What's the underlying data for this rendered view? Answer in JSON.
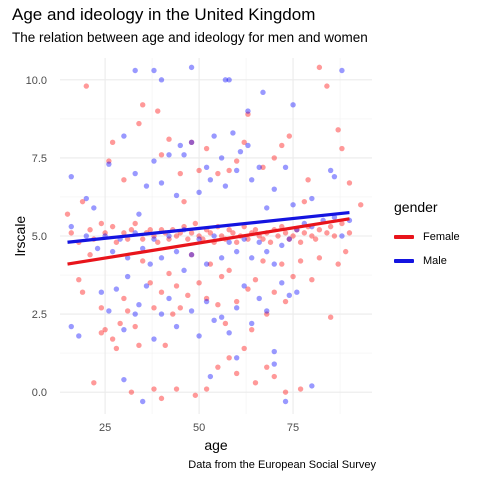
{
  "title": "Age and ideology in the United Kingdom",
  "subtitle": "The relation between age and ideology for men and women",
  "caption": "Data from the European Social Survey",
  "legend": {
    "title": "gender",
    "items": [
      {
        "label": "Female",
        "color": "#e8141b"
      },
      {
        "label": "Male",
        "color": "#1414e0"
      }
    ]
  },
  "chart_data": {
    "type": "scatter",
    "xlabel": "age",
    "ylabel": "lrscale",
    "xlim": [
      13,
      96
    ],
    "ylim": [
      -0.7,
      10.7
    ],
    "x_ticks": [
      25,
      50,
      75
    ],
    "y_ticks": [
      0.0,
      2.5,
      5.0,
      7.5,
      10.0
    ],
    "y_tick_labels": [
      "0.0",
      "2.5",
      "5.0",
      "7.5",
      "10.0"
    ],
    "grid": true,
    "legend_position": "right",
    "series": [
      {
        "name": "Female",
        "color": "#ff0000",
        "points": [
          [
            20,
            9.8
          ],
          [
            26,
            7.4
          ],
          [
            27,
            8.0
          ],
          [
            30,
            6.8
          ],
          [
            34,
            8.6
          ],
          [
            35,
            9.2
          ],
          [
            39,
            9.0
          ],
          [
            40,
            7.6
          ],
          [
            42,
            8.1
          ],
          [
            45,
            7.0
          ],
          [
            46,
            6.1
          ],
          [
            48,
            8.0
          ],
          [
            50,
            7.1
          ],
          [
            52,
            7.8
          ],
          [
            55,
            7.0
          ],
          [
            58,
            7.1
          ],
          [
            60,
            7.4
          ],
          [
            62,
            8.0
          ],
          [
            63,
            8.9
          ],
          [
            67,
            7.2
          ],
          [
            70,
            7.5
          ],
          [
            72,
            7.9
          ],
          [
            74,
            8.2
          ],
          [
            78,
            6.1
          ],
          [
            79,
            6.8
          ],
          [
            82,
            10.4
          ],
          [
            84,
            9.8
          ],
          [
            87,
            8.4
          ],
          [
            88,
            7.8
          ],
          [
            90,
            6.7
          ],
          [
            15,
            5.7
          ],
          [
            16,
            5.1
          ],
          [
            18,
            4.8
          ],
          [
            19,
            6.1
          ],
          [
            21,
            5.2
          ],
          [
            22,
            4.9
          ],
          [
            24,
            5.4
          ],
          [
            25,
            5.1
          ],
          [
            27,
            5.3
          ],
          [
            28,
            4.8
          ],
          [
            30,
            5.1
          ],
          [
            31,
            4.9
          ],
          [
            32,
            5.2
          ],
          [
            33,
            5.4
          ],
          [
            35,
            4.9
          ],
          [
            36,
            5.1
          ],
          [
            37,
            5.2
          ],
          [
            38,
            5.0
          ],
          [
            39,
            4.8
          ],
          [
            40,
            5.2
          ],
          [
            41,
            5.1
          ],
          [
            42,
            4.9
          ],
          [
            43,
            5.2
          ],
          [
            44,
            5.0
          ],
          [
            45,
            5.1
          ],
          [
            46,
            5.3
          ],
          [
            47,
            4.9
          ],
          [
            48,
            5.1
          ],
          [
            49,
            5.4
          ],
          [
            50,
            5.0
          ],
          [
            51,
            4.9
          ],
          [
            52,
            5.2
          ],
          [
            53,
            5.1
          ],
          [
            54,
            4.8
          ],
          [
            55,
            5.3
          ],
          [
            56,
            5.0
          ],
          [
            57,
            4.9
          ],
          [
            58,
            5.2
          ],
          [
            59,
            5.1
          ],
          [
            60,
            4.8
          ],
          [
            61,
            5.0
          ],
          [
            62,
            5.3
          ],
          [
            63,
            4.9
          ],
          [
            64,
            5.1
          ],
          [
            65,
            5.2
          ],
          [
            66,
            5.0
          ],
          [
            67,
            4.9
          ],
          [
            68,
            5.1
          ],
          [
            69,
            4.8
          ],
          [
            70,
            5.2
          ],
          [
            71,
            5.0
          ],
          [
            72,
            5.3
          ],
          [
            73,
            5.1
          ],
          [
            74,
            4.9
          ],
          [
            75,
            5.0
          ],
          [
            76,
            5.2
          ],
          [
            77,
            4.8
          ],
          [
            78,
            5.1
          ],
          [
            79,
            5.3
          ],
          [
            80,
            5.0
          ],
          [
            81,
            4.9
          ],
          [
            82,
            5.2
          ],
          [
            84,
            5.1
          ],
          [
            85,
            5.3
          ],
          [
            86,
            5.0
          ],
          [
            88,
            5.4
          ],
          [
            90,
            5.1
          ],
          [
            93,
            6.0
          ],
          [
            18,
            3.6
          ],
          [
            19,
            3.2
          ],
          [
            21,
            4.4
          ],
          [
            24,
            2.7
          ],
          [
            24,
            1.9
          ],
          [
            25,
            2.0
          ],
          [
            27,
            1.7
          ],
          [
            28,
            1.4
          ],
          [
            29,
            2.2
          ],
          [
            30,
            3.0
          ],
          [
            31,
            2.6
          ],
          [
            33,
            2.1
          ],
          [
            34,
            1.5
          ],
          [
            35,
            4.2
          ],
          [
            37,
            3.5
          ],
          [
            38,
            2.7
          ],
          [
            40,
            3.2
          ],
          [
            41,
            1.5
          ],
          [
            42,
            3.8
          ],
          [
            43,
            2.5
          ],
          [
            44,
            3.4
          ],
          [
            45,
            2.7
          ],
          [
            47,
            3.1
          ],
          [
            48,
            4.4
          ],
          [
            50,
            3.5
          ],
          [
            52,
            3.0
          ],
          [
            53,
            4.1
          ],
          [
            55,
            2.8
          ],
          [
            56,
            3.7
          ],
          [
            57,
            2.2
          ],
          [
            58,
            3.9
          ],
          [
            60,
            2.9
          ],
          [
            62,
            1.4
          ],
          [
            63,
            3.3
          ],
          [
            64,
            2.0
          ],
          [
            65,
            3.6
          ],
          [
            67,
            4.2
          ],
          [
            68,
            2.5
          ],
          [
            70,
            3.2
          ],
          [
            72,
            4.1
          ],
          [
            73,
            2.9
          ],
          [
            75,
            3.7
          ],
          [
            77,
            4.2
          ],
          [
            80,
            3.6
          ],
          [
            82,
            4.3
          ],
          [
            85,
            2.4
          ],
          [
            87,
            4.1
          ],
          [
            89,
            4.5
          ],
          [
            22,
            0.3
          ],
          [
            32,
            0.0
          ],
          [
            38,
            0.1
          ],
          [
            40,
            -0.2
          ],
          [
            44,
            0.1
          ],
          [
            49,
            -0.1
          ],
          [
            52,
            0.1
          ],
          [
            55,
            0.8
          ],
          [
            58,
            1.1
          ],
          [
            60,
            0.6
          ],
          [
            65,
            0.3
          ],
          [
            68,
            0.8
          ],
          [
            70,
            0.5
          ],
          [
            73,
            0.0
          ],
          [
            77,
            0.1
          ]
        ]
      },
      {
        "name": "Male",
        "color": "#0000ff",
        "points": [
          [
            33,
            10.3
          ],
          [
            38,
            10.3
          ],
          [
            40,
            10.0
          ],
          [
            48,
            10.4
          ],
          [
            57,
            10.0
          ],
          [
            58,
            10.0
          ],
          [
            63,
            9.0
          ],
          [
            67,
            9.6
          ],
          [
            75,
            9.2
          ],
          [
            88,
            10.3
          ],
          [
            16,
            6.9
          ],
          [
            20,
            6.2
          ],
          [
            22,
            5.9
          ],
          [
            26,
            7.3
          ],
          [
            30,
            8.2
          ],
          [
            33,
            7.0
          ],
          [
            34,
            5.7
          ],
          [
            36,
            6.6
          ],
          [
            38,
            7.4
          ],
          [
            40,
            6.7
          ],
          [
            42,
            7.6
          ],
          [
            44,
            6.3
          ],
          [
            45,
            7.9
          ],
          [
            46,
            7.6
          ],
          [
            48,
            8.0
          ],
          [
            50,
            6.4
          ],
          [
            52,
            7.2
          ],
          [
            53,
            6.8
          ],
          [
            54,
            8.2
          ],
          [
            56,
            7.5
          ],
          [
            57,
            6.6
          ],
          [
            59,
            8.3
          ],
          [
            60,
            7.1
          ],
          [
            61,
            7.7
          ],
          [
            63,
            7.9
          ],
          [
            64,
            6.8
          ],
          [
            66,
            7.2
          ],
          [
            68,
            5.9
          ],
          [
            70,
            6.5
          ],
          [
            73,
            7.2
          ],
          [
            75,
            6.0
          ],
          [
            80,
            6.2
          ],
          [
            85,
            7.1
          ],
          [
            86,
            6.9
          ],
          [
            16,
            5.3
          ],
          [
            20,
            5.0
          ],
          [
            23,
            4.6
          ],
          [
            25,
            5.0
          ],
          [
            27,
            4.5
          ],
          [
            29,
            4.9
          ],
          [
            31,
            4.3
          ],
          [
            33,
            5.1
          ],
          [
            35,
            4.6
          ],
          [
            37,
            4.1
          ],
          [
            38,
            4.9
          ],
          [
            40,
            4.3
          ],
          [
            42,
            5.0
          ],
          [
            44,
            4.5
          ],
          [
            46,
            5.2
          ],
          [
            48,
            4.4
          ],
          [
            50,
            4.9
          ],
          [
            52,
            4.1
          ],
          [
            54,
            5.0
          ],
          [
            56,
            4.3
          ],
          [
            58,
            4.8
          ],
          [
            60,
            4.5
          ],
          [
            62,
            4.9
          ],
          [
            64,
            4.3
          ],
          [
            66,
            4.8
          ],
          [
            68,
            4.5
          ],
          [
            70,
            4.1
          ],
          [
            72,
            4.7
          ],
          [
            74,
            4.9
          ],
          [
            76,
            5.2
          ],
          [
            78,
            5.4
          ],
          [
            80,
            5.3
          ],
          [
            83,
            5.5
          ],
          [
            86,
            5.6
          ],
          [
            88,
            5.0
          ],
          [
            90,
            5.5
          ],
          [
            16,
            2.1
          ],
          [
            18,
            1.8
          ],
          [
            24,
            3.2
          ],
          [
            26,
            2.6
          ],
          [
            28,
            3.3
          ],
          [
            30,
            2.0
          ],
          [
            31,
            3.7
          ],
          [
            33,
            2.5
          ],
          [
            34,
            2.8
          ],
          [
            36,
            3.4
          ],
          [
            38,
            1.7
          ],
          [
            40,
            2.5
          ],
          [
            42,
            3.0
          ],
          [
            44,
            2.1
          ],
          [
            46,
            3.9
          ],
          [
            48,
            2.6
          ],
          [
            50,
            1.8
          ],
          [
            52,
            2.9
          ],
          [
            54,
            2.3
          ],
          [
            56,
            2.4
          ],
          [
            58,
            1.9
          ],
          [
            60,
            2.7
          ],
          [
            62,
            3.4
          ],
          [
            64,
            2.2
          ],
          [
            66,
            3.0
          ],
          [
            68,
            2.6
          ],
          [
            70,
            1.3
          ],
          [
            72,
            3.5
          ],
          [
            74,
            3.1
          ],
          [
            76,
            3.2
          ],
          [
            30,
            0.4
          ],
          [
            35,
            -0.3
          ],
          [
            53,
            0.5
          ],
          [
            60,
            1.1
          ],
          [
            70,
            0.9
          ],
          [
            73,
            -0.3
          ],
          [
            80,
            0.2
          ]
        ]
      }
    ],
    "fit_lines": [
      {
        "name": "Female",
        "x": [
          15,
          90
        ],
        "y": [
          4.1,
          5.55
        ]
      },
      {
        "name": "Male",
        "x": [
          15,
          90
        ],
        "y": [
          4.8,
          5.75
        ]
      }
    ]
  }
}
